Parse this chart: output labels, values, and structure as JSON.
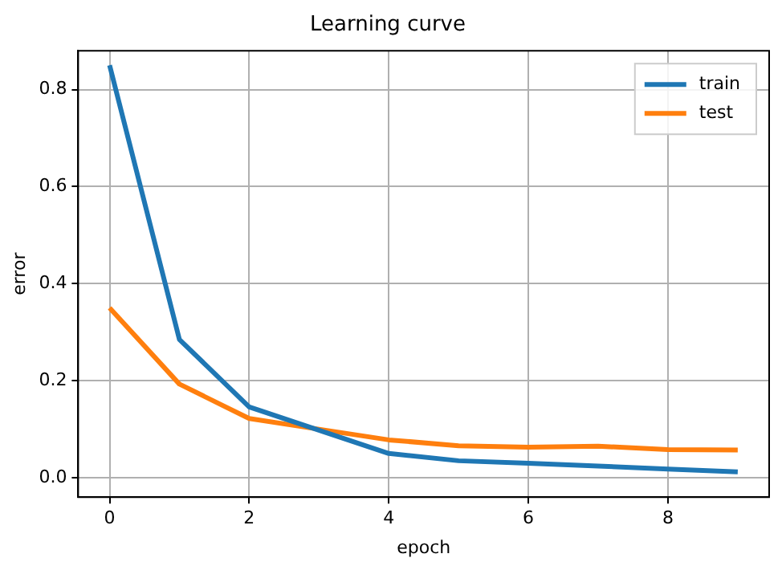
{
  "chart_data": {
    "type": "line",
    "title": "Learning curve",
    "xlabel": "epoch",
    "ylabel": "error",
    "x": [
      0,
      1,
      2,
      3,
      4,
      5,
      6,
      7,
      8,
      9
    ],
    "series": [
      {
        "name": "train",
        "color": "#1f77b4",
        "values": [
          0.85,
          0.285,
          0.146,
          0.098,
          0.05,
          0.035,
          0.03,
          0.024,
          0.018,
          0.012
        ]
      },
      {
        "name": "test",
        "color": "#ff7f0e",
        "values": [
          0.35,
          0.193,
          0.122,
          0.1,
          0.078,
          0.066,
          0.063,
          0.065,
          0.058,
          0.057
        ]
      }
    ],
    "xlim": [
      -0.45,
      9.45
    ],
    "xticks": [
      0,
      2,
      4,
      6,
      8
    ],
    "ylim": [
      -0.04,
      0.88
    ],
    "yticks": [
      {
        "value": 0,
        "label": "0.0"
      },
      0.2,
      0.4,
      0.6,
      0.8
    ],
    "grid": true,
    "legend": "top right",
    "marker": "none",
    "line_style": "solid"
  }
}
